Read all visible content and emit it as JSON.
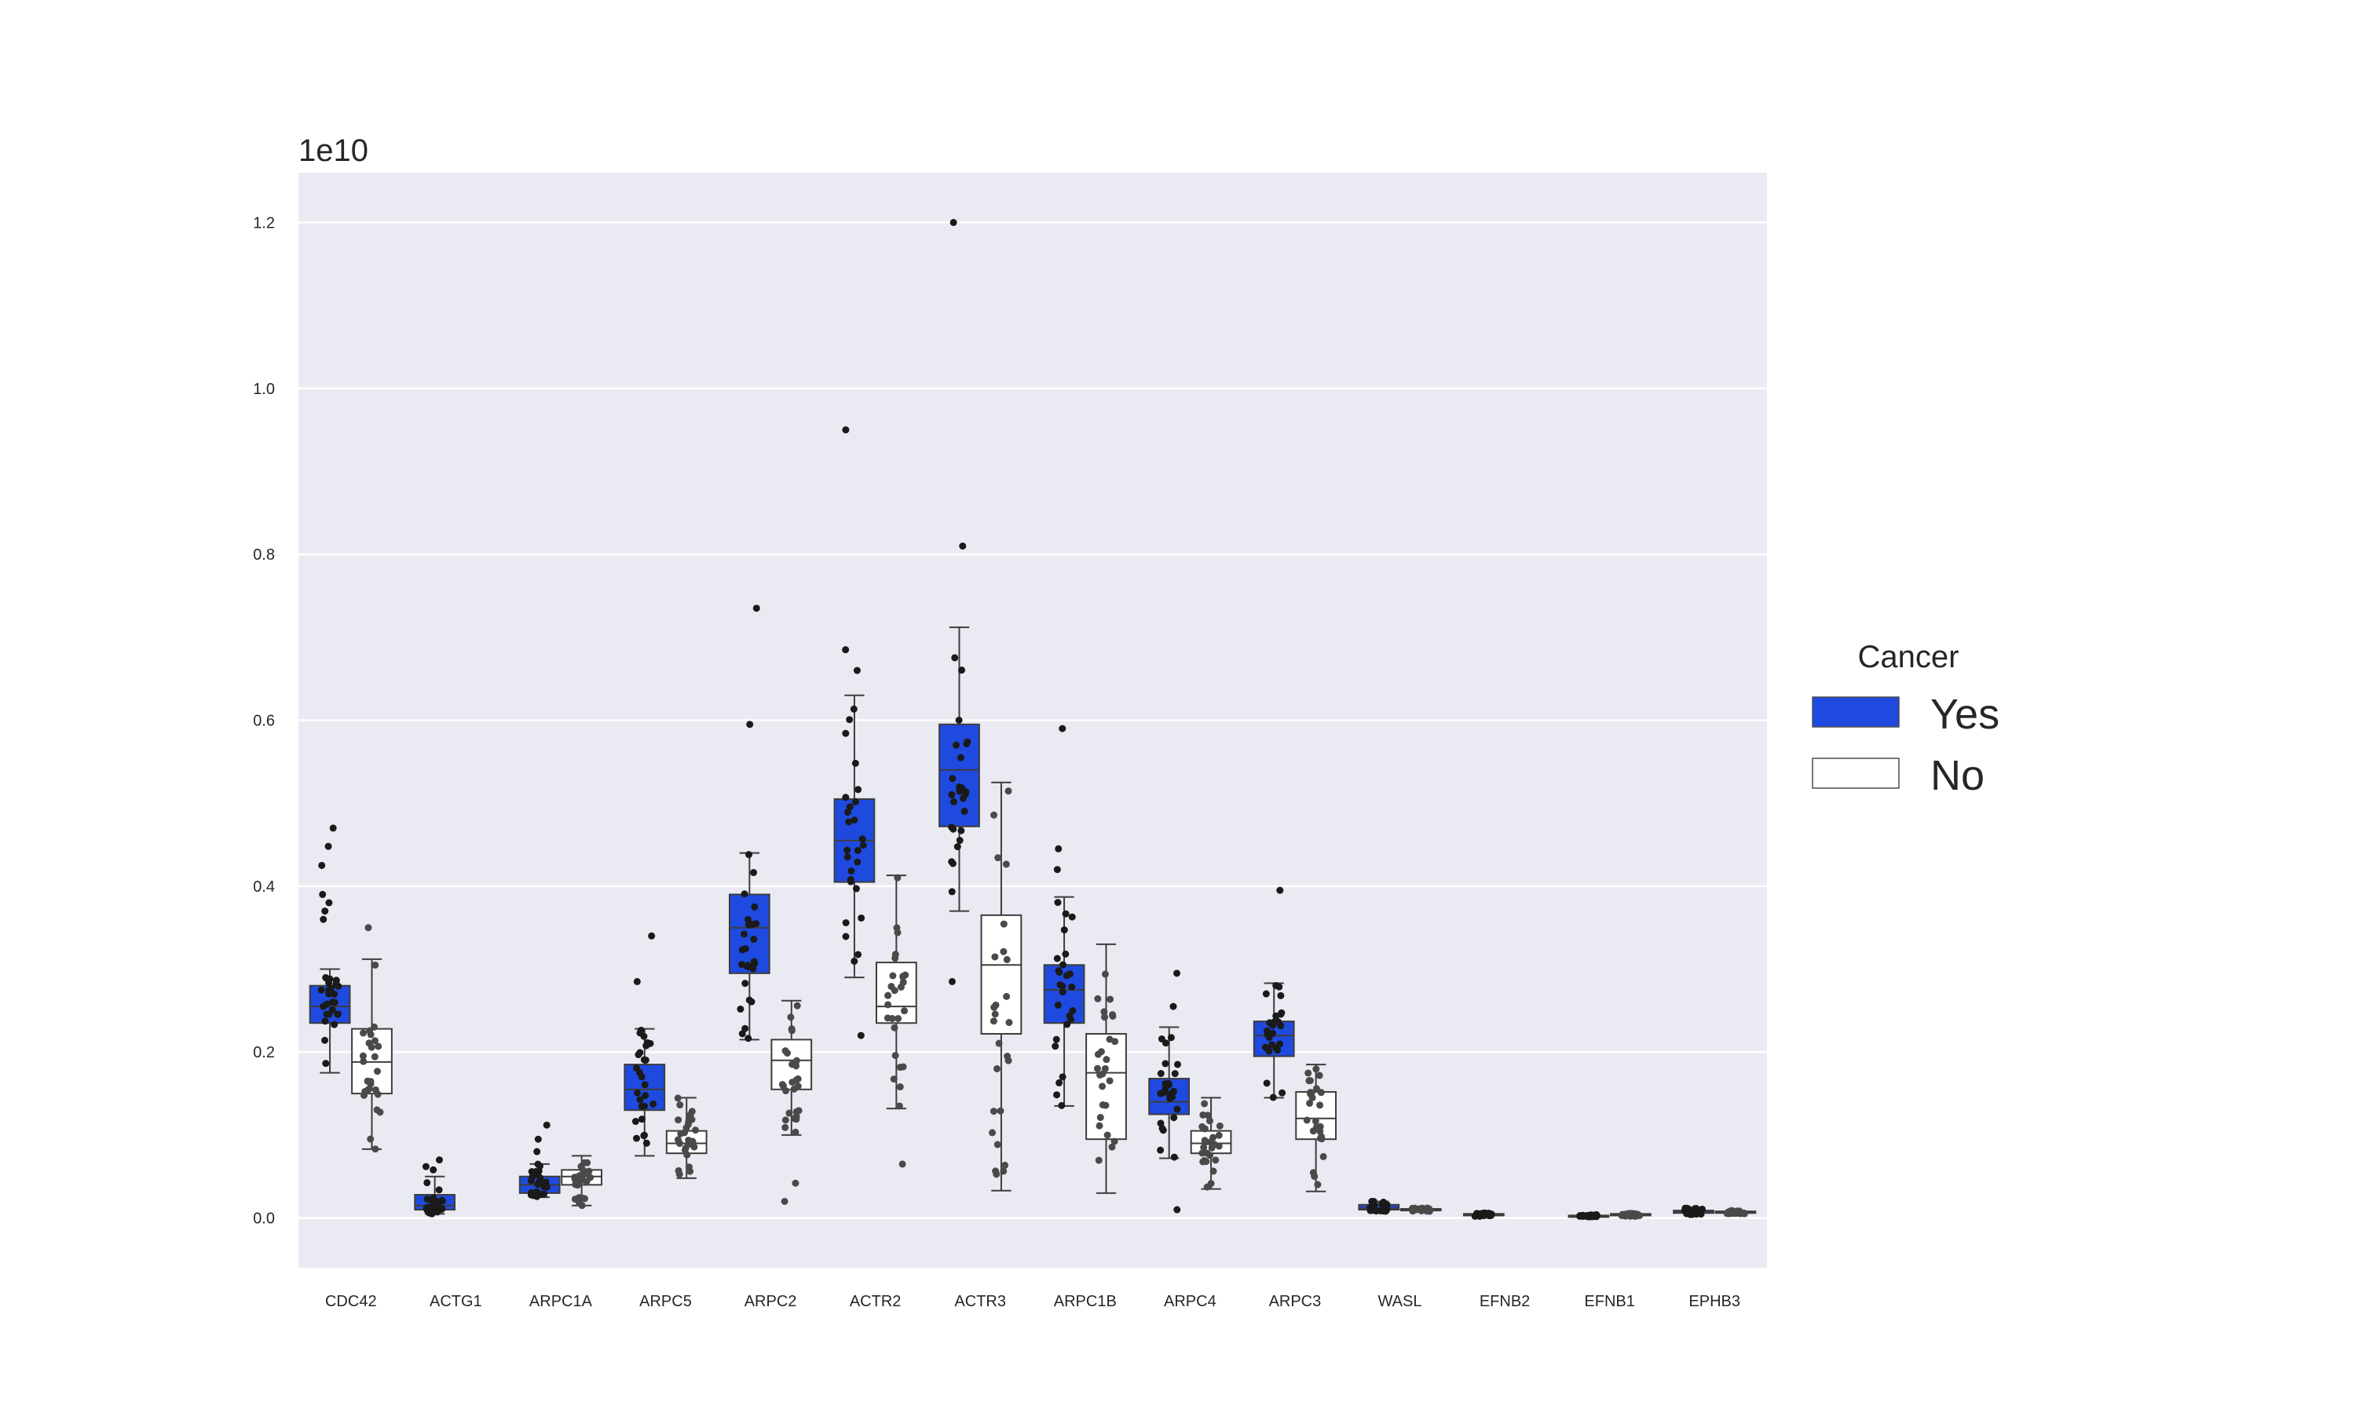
{
  "chart_data": {
    "type": "box",
    "offset_text": "1e10",
    "ylim": [
      -0.06,
      1.26
    ],
    "yticks": [
      0.0,
      0.2,
      0.4,
      0.6,
      0.8,
      1.0,
      1.2
    ],
    "ytick_labels": [
      "0.0",
      "0.2",
      "0.4",
      "0.6",
      "0.8",
      "1.0",
      "1.2"
    ],
    "grid": true,
    "legend": {
      "title": "Cancer",
      "placement": "right"
    },
    "categories": [
      "CDC42",
      "ACTG1",
      "ARPC1A",
      "ARPC5",
      "ARPC2",
      "ACTR2",
      "ACTR3",
      "ARPC1B",
      "ARPC4",
      "ARPC3",
      "WASL",
      "EFNB2",
      "EFNB1",
      "EPHB3"
    ],
    "series": [
      {
        "name": "Yes",
        "color": "#1f4ae0",
        "stats": [
          {
            "whislo": 0.175,
            "q1": 0.235,
            "med": 0.255,
            "q3": 0.28,
            "whishi": 0.3
          },
          {
            "whislo": 0.005,
            "q1": 0.01,
            "med": 0.015,
            "q3": 0.028,
            "whishi": 0.05
          },
          {
            "whislo": 0.025,
            "q1": 0.03,
            "med": 0.04,
            "q3": 0.05,
            "whishi": 0.065
          },
          {
            "whislo": 0.075,
            "q1": 0.13,
            "med": 0.155,
            "q3": 0.185,
            "whishi": 0.228
          },
          {
            "whislo": 0.215,
            "q1": 0.295,
            "med": 0.35,
            "q3": 0.39,
            "whishi": 0.44
          },
          {
            "whislo": 0.29,
            "q1": 0.405,
            "med": 0.455,
            "q3": 0.505,
            "whishi": 0.63
          },
          {
            "whislo": 0.37,
            "q1": 0.472,
            "med": 0.54,
            "q3": 0.595,
            "whishi": 0.712
          },
          {
            "whislo": 0.135,
            "q1": 0.235,
            "med": 0.275,
            "q3": 0.305,
            "whishi": 0.387
          },
          {
            "whislo": 0.072,
            "q1": 0.125,
            "med": 0.14,
            "q3": 0.168,
            "whishi": 0.23
          },
          {
            "whislo": 0.145,
            "q1": 0.195,
            "med": 0.22,
            "q3": 0.237,
            "whishi": 0.283
          },
          {
            "whislo": 0.008,
            "q1": 0.01,
            "med": 0.012,
            "q3": 0.016,
            "whishi": 0.02
          },
          {
            "whislo": 0.002,
            "q1": 0.003,
            "med": 0.004,
            "q3": 0.005,
            "whishi": 0.006
          },
          {
            "whislo": 0.001,
            "q1": 0.002,
            "med": 0.003,
            "q3": 0.003,
            "whishi": 0.004
          },
          {
            "whislo": 0.004,
            "q1": 0.006,
            "med": 0.007,
            "q3": 0.009,
            "whishi": 0.012
          }
        ],
        "outliers": [
          [
            0.36,
            0.37,
            0.38,
            0.39,
            0.425,
            0.448,
            0.47
          ],
          [
            0.058,
            0.062,
            0.07
          ],
          [
            0.08,
            0.095,
            0.112
          ],
          [
            0.285,
            0.34
          ],
          [
            0.595,
            0.735
          ],
          [
            0.22,
            0.66,
            0.685,
            0.95
          ],
          [
            0.285,
            0.81,
            1.2
          ],
          [
            0.42,
            0.445,
            0.59
          ],
          [
            0.01,
            0.255,
            0.295
          ],
          [
            0.395
          ],
          [],
          [],
          [],
          []
        ]
      },
      {
        "name": "No",
        "color": "#ffffff",
        "stats": [
          {
            "whislo": 0.083,
            "q1": 0.15,
            "med": 0.188,
            "q3": 0.228,
            "whishi": 0.312
          },
          null,
          {
            "whislo": 0.015,
            "q1": 0.04,
            "med": 0.05,
            "q3": 0.058,
            "whishi": 0.075
          },
          {
            "whislo": 0.048,
            "q1": 0.078,
            "med": 0.09,
            "q3": 0.105,
            "whishi": 0.145
          },
          {
            "whislo": 0.1,
            "q1": 0.155,
            "med": 0.19,
            "q3": 0.215,
            "whishi": 0.262
          },
          {
            "whislo": 0.132,
            "q1": 0.235,
            "med": 0.255,
            "q3": 0.308,
            "whishi": 0.413
          },
          {
            "whislo": 0.033,
            "q1": 0.222,
            "med": 0.305,
            "q3": 0.365,
            "whishi": 0.525
          },
          {
            "whislo": 0.03,
            "q1": 0.095,
            "med": 0.175,
            "q3": 0.222,
            "whishi": 0.33
          },
          {
            "whislo": 0.035,
            "q1": 0.078,
            "med": 0.09,
            "q3": 0.105,
            "whishi": 0.145
          },
          {
            "whislo": 0.032,
            "q1": 0.095,
            "med": 0.12,
            "q3": 0.152,
            "whishi": 0.185
          },
          {
            "whislo": 0.008,
            "q1": 0.009,
            "med": 0.01,
            "q3": 0.011,
            "whishi": 0.012
          },
          null,
          {
            "whislo": 0.002,
            "q1": 0.003,
            "med": 0.004,
            "q3": 0.005,
            "whishi": 0.006
          },
          {
            "whislo": 0.005,
            "q1": 0.006,
            "med": 0.007,
            "q3": 0.008,
            "whishi": 0.009
          }
        ],
        "outliers": [
          [
            0.35
          ],
          [],
          [],
          [],
          [
            0.02,
            0.042
          ],
          [
            0.065
          ],
          [],
          [],
          [],
          [],
          [],
          [],
          [],
          []
        ]
      }
    ]
  }
}
